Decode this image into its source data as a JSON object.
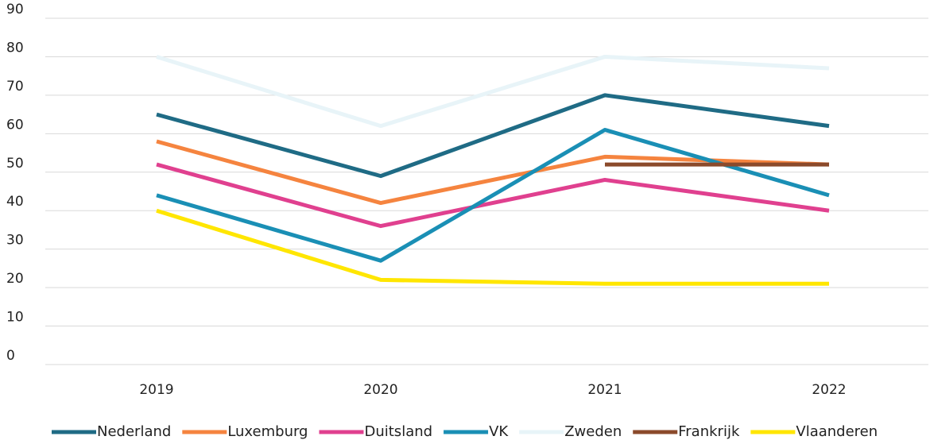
{
  "chart_data": {
    "type": "line",
    "categories": [
      "2019",
      "2020",
      "2021",
      "2022"
    ],
    "series": [
      {
        "name": "Nederland",
        "color": "#1f6b85",
        "values": [
          65,
          49,
          70,
          62
        ]
      },
      {
        "name": "Luxemburg",
        "color": "#f5843f",
        "values": [
          58,
          42,
          54,
          52
        ]
      },
      {
        "name": "Duitsland",
        "color": "#e0408f",
        "values": [
          52,
          36,
          48,
          40
        ]
      },
      {
        "name": "VK",
        "color": "#1a8fb5",
        "values": [
          44,
          27,
          61,
          44
        ]
      },
      {
        "name": "Zweden",
        "color": "#e8f4f8",
        "values": [
          80,
          62,
          80,
          77
        ]
      },
      {
        "name": "Frankrijk",
        "color": "#8b4a2b",
        "values": [
          null,
          null,
          52,
          52
        ]
      },
      {
        "name": "Vlaanderen",
        "color": "#ffe600",
        "values": [
          40,
          22,
          21,
          21
        ]
      }
    ],
    "ylim": [
      0,
      90
    ],
    "yticks": [
      0,
      10,
      20,
      30,
      40,
      50,
      60,
      70,
      80,
      90
    ],
    "grid": true,
    "legend": "bottom"
  }
}
